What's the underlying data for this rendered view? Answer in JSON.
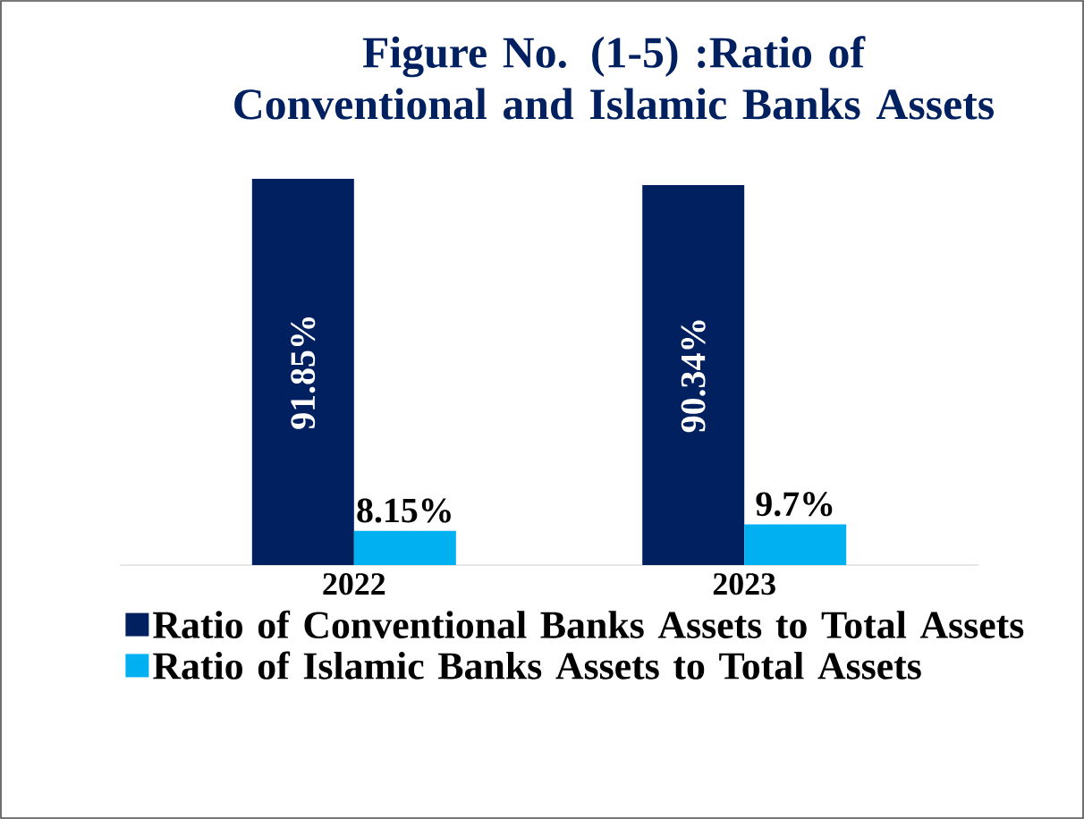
{
  "chart_data": {
    "type": "bar",
    "title": "Figure No. (1-5) :Ratio of Conventional and Islamic Banks Assets",
    "categories": [
      "2022",
      "2023"
    ],
    "series": [
      {
        "name": "Ratio of Conventional Banks Assets to Total Assets",
        "color": "#002060",
        "values": [
          91.85,
          90.34
        ],
        "value_labels": [
          "91.85%",
          "90.34%"
        ]
      },
      {
        "name": "Ratio of Islamic Banks Assets to Total Assets",
        "color": "#00b0f0",
        "values": [
          8.15,
          9.7
        ],
        "value_labels": [
          "8.15%",
          "9.7%"
        ]
      }
    ],
    "legend": "bottom",
    "grid": false
  }
}
